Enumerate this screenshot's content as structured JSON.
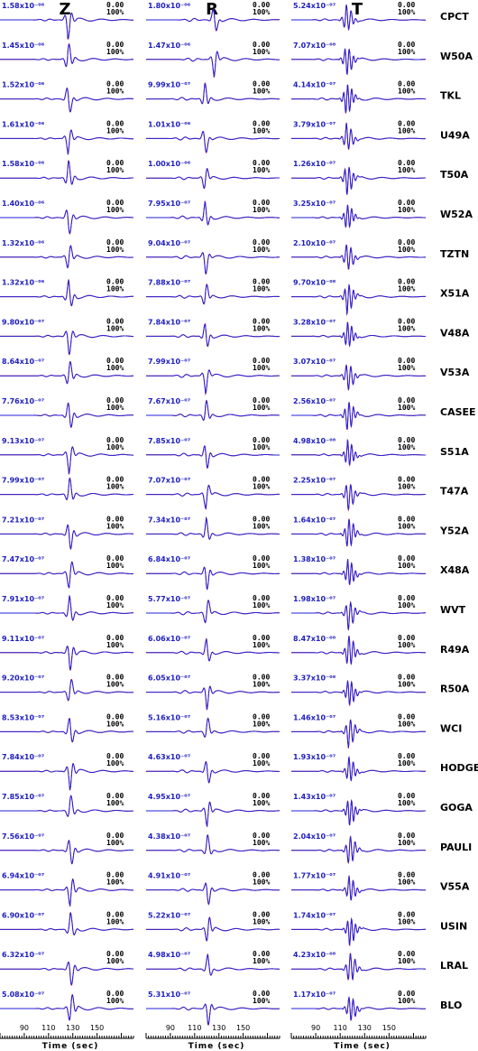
{
  "chart_data": {
    "type": "line",
    "xlabel": "Time (sec)",
    "xticks": [
      90,
      110,
      130,
      150
    ],
    "xlim": [
      70,
      180
    ],
    "components": [
      "Z",
      "R",
      "T"
    ],
    "fit": "0.00",
    "percent": "100%",
    "series_colors": {
      "observed": "#dd2020",
      "synthetic": "#2222dd"
    },
    "stations": [
      {
        "name": "CPCT",
        "amps": [
          "1.58x10⁻⁰⁶",
          "1.80x10⁻⁰⁶",
          "5.24x10⁻⁰⁷"
        ]
      },
      {
        "name": "W50A",
        "amps": [
          "1.45x10⁻⁰⁶",
          "1.47x10⁻⁰⁶",
          "7.07x10⁻⁰⁸"
        ]
      },
      {
        "name": "TKL",
        "amps": [
          "1.52x10⁻⁰⁶",
          "9.99x10⁻⁰⁷",
          "4.14x10⁻⁰⁷"
        ]
      },
      {
        "name": "U49A",
        "amps": [
          "1.61x10⁻⁰⁶",
          "1.01x10⁻⁰⁶",
          "3.79x10⁻⁰⁷"
        ]
      },
      {
        "name": "T50A",
        "amps": [
          "1.58x10⁻⁰⁶",
          "1.00x10⁻⁰⁶",
          "1.26x10⁻⁰⁷"
        ]
      },
      {
        "name": "W52A",
        "amps": [
          "1.40x10⁻⁰⁶",
          "7.95x10⁻⁰⁷",
          "3.25x10⁻⁰⁷"
        ]
      },
      {
        "name": "TZTN",
        "amps": [
          "1.32x10⁻⁰⁶",
          "9.04x10⁻⁰⁷",
          "2.10x10⁻⁰⁷"
        ]
      },
      {
        "name": "X51A",
        "amps": [
          "1.32x10⁻⁰⁶",
          "7.88x10⁻⁰⁷",
          "9.70x10⁻⁰⁸"
        ]
      },
      {
        "name": "V48A",
        "amps": [
          "9.80x10⁻⁰⁷",
          "7.84x10⁻⁰⁷",
          "3.28x10⁻⁰⁷"
        ]
      },
      {
        "name": "V53A",
        "amps": [
          "8.64x10⁻⁰⁷",
          "7.99x10⁻⁰⁷",
          "3.07x10⁻⁰⁷"
        ]
      },
      {
        "name": "CASEE",
        "amps": [
          "7.76x10⁻⁰⁷",
          "7.67x10⁻⁰⁷",
          "2.56x10⁻⁰⁷"
        ]
      },
      {
        "name": "S51A",
        "amps": [
          "9.13x10⁻⁰⁷",
          "7.85x10⁻⁰⁷",
          "4.98x10⁻⁰⁸"
        ]
      },
      {
        "name": "T47A",
        "amps": [
          "7.99x10⁻⁰⁷",
          "7.07x10⁻⁰⁷",
          "2.25x10⁻⁰⁷"
        ]
      },
      {
        "name": "Y52A",
        "amps": [
          "7.21x10⁻⁰⁷",
          "7.34x10⁻⁰⁷",
          "1.64x10⁻⁰⁷"
        ]
      },
      {
        "name": "X48A",
        "amps": [
          "7.47x10⁻⁰⁷",
          "6.84x10⁻⁰⁷",
          "1.38x10⁻⁰⁷"
        ]
      },
      {
        "name": "WVT",
        "amps": [
          "7.91x10⁻⁰⁷",
          "5.77x10⁻⁰⁷",
          "1.98x10⁻⁰⁷"
        ]
      },
      {
        "name": "R49A",
        "amps": [
          "9.11x10⁻⁰⁷",
          "6.06x10⁻⁰⁷",
          "8.47x10⁻⁰⁸"
        ]
      },
      {
        "name": "R50A",
        "amps": [
          "9.20x10⁻⁰⁷",
          "6.05x10⁻⁰⁷",
          "3.37x10⁻⁰⁸"
        ]
      },
      {
        "name": "WCI",
        "amps": [
          "8.53x10⁻⁰⁷",
          "5.16x10⁻⁰⁷",
          "1.46x10⁻⁰⁷"
        ]
      },
      {
        "name": "HODGE",
        "amps": [
          "7.84x10⁻⁰⁷",
          "4.63x10⁻⁰⁷",
          "1.93x10⁻⁰⁷"
        ]
      },
      {
        "name": "GOGA",
        "amps": [
          "7.85x10⁻⁰⁷",
          "4.95x10⁻⁰⁷",
          "1.43x10⁻⁰⁷"
        ]
      },
      {
        "name": "PAULI",
        "amps": [
          "7.56x10⁻⁰⁷",
          "4.38x10⁻⁰⁷",
          "2.04x10⁻⁰⁷"
        ]
      },
      {
        "name": "V55A",
        "amps": [
          "6.94x10⁻⁰⁷",
          "4.91x10⁻⁰⁷",
          "1.77x10⁻⁰⁷"
        ]
      },
      {
        "name": "USIN",
        "amps": [
          "6.90x10⁻⁰⁷",
          "5.22x10⁻⁰⁷",
          "1.74x10⁻⁰⁷"
        ]
      },
      {
        "name": "LRAL",
        "amps": [
          "6.32x10⁻⁰⁷",
          "4.98x10⁻⁰⁷",
          "4.23x10⁻⁰⁸"
        ]
      },
      {
        "name": "BLO",
        "amps": [
          "5.08x10⁻⁰⁷",
          "5.31x10⁻⁰⁷",
          "1.17x10⁻⁰⁷"
        ]
      }
    ]
  }
}
